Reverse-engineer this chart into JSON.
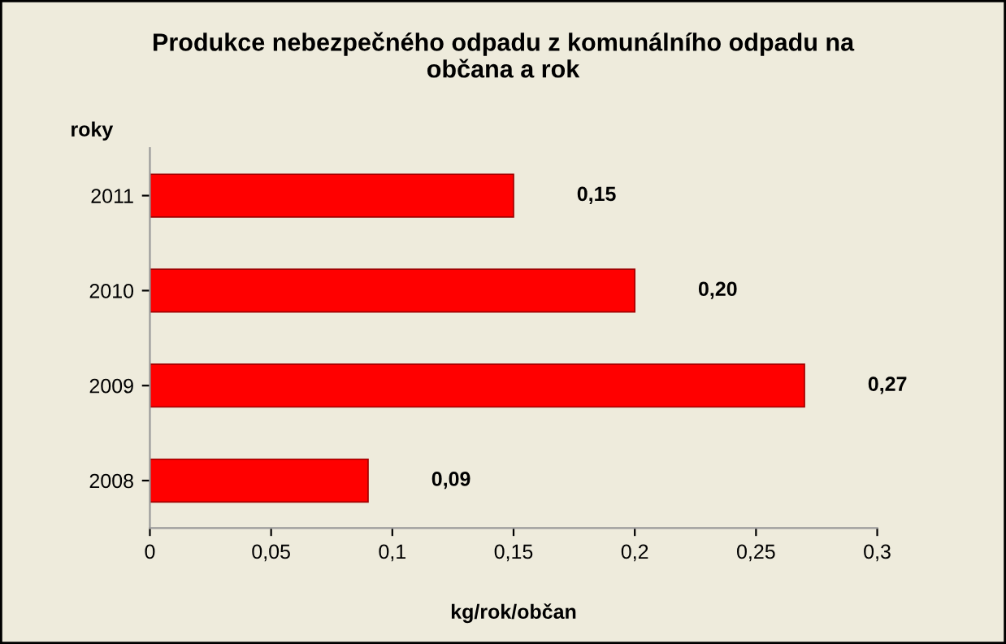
{
  "chart_data": {
    "type": "bar",
    "orientation": "horizontal",
    "title": "Produkce nebezpečného odpadu z komunálního odpadu na\nobčana a rok",
    "xlabel": "kg/rok/občan",
    "ylabel": "roky",
    "categories": [
      "2011",
      "2010",
      "2009",
      "2008"
    ],
    "values": [
      0.15,
      0.2,
      0.27,
      0.09
    ],
    "color": "#ff0000",
    "value_labels": [
      "0,15",
      "0,20",
      "0,27",
      "0,09"
    ],
    "xlim": [
      0,
      0.3
    ],
    "xticks": [
      0,
      {
        "value": 0.05,
        "label": "0,05"
      },
      {
        "value": 0.1,
        "label": "0,1"
      },
      {
        "value": 0.15,
        "label": "0,15"
      },
      {
        "value": 0.2,
        "label": "0,2"
      },
      {
        "value": 0.25,
        "label": "0,25"
      },
      {
        "value": 0.3,
        "label": "0,3"
      }
    ],
    "grid": false,
    "legend": false
  }
}
